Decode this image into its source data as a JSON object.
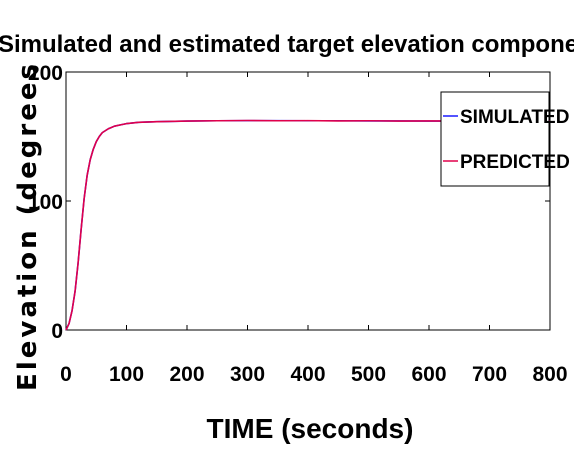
{
  "chart_data": {
    "type": "line",
    "title": "Simulated and estimated target elevation components",
    "xlabel": "TIME (seconds)",
    "ylabel": "Elevation (degrees",
    "xlim": [
      0,
      800
    ],
    "ylim": [
      0,
      200
    ],
    "xticks": [
      0,
      100,
      200,
      300,
      400,
      500,
      600,
      700,
      800
    ],
    "yticks": [
      0,
      100,
      200
    ],
    "grid": false,
    "legend_position": "top-right",
    "colors": {
      "simulated": "#1a1aff",
      "predicted": "#e0004a",
      "axis": "#000000"
    },
    "series": [
      {
        "name": "SIMULATED",
        "x": [
          0,
          5,
          10,
          15,
          20,
          25,
          30,
          35,
          40,
          45,
          50,
          55,
          60,
          70,
          80,
          90,
          100,
          120,
          150,
          200,
          250,
          300,
          350,
          400,
          450,
          500,
          550,
          600,
          650,
          700,
          750,
          800
        ],
        "y": [
          0,
          5,
          15,
          30,
          52,
          78,
          102,
          120,
          132,
          140,
          146,
          150,
          153,
          156,
          158,
          159,
          160,
          161,
          161.5,
          162,
          162.2,
          162.3,
          162.3,
          162.2,
          162.2,
          162.1,
          162.1,
          162,
          162,
          162,
          162,
          162
        ]
      },
      {
        "name": "PREDICTED",
        "x": [
          0,
          5,
          10,
          15,
          20,
          25,
          30,
          35,
          40,
          45,
          50,
          55,
          60,
          70,
          80,
          90,
          100,
          120,
          150,
          200,
          250,
          300,
          350,
          400,
          450,
          500,
          550,
          600,
          650,
          700,
          750,
          800
        ],
        "y": [
          0,
          5,
          15,
          30,
          52,
          78,
          102,
          120,
          132,
          140,
          146,
          150,
          153,
          156,
          158,
          159,
          160,
          161,
          161.5,
          162,
          162.2,
          162.4,
          162.2,
          162.3,
          162.1,
          162.2,
          162,
          162.1,
          162,
          161.9,
          162,
          162
        ]
      }
    ]
  }
}
